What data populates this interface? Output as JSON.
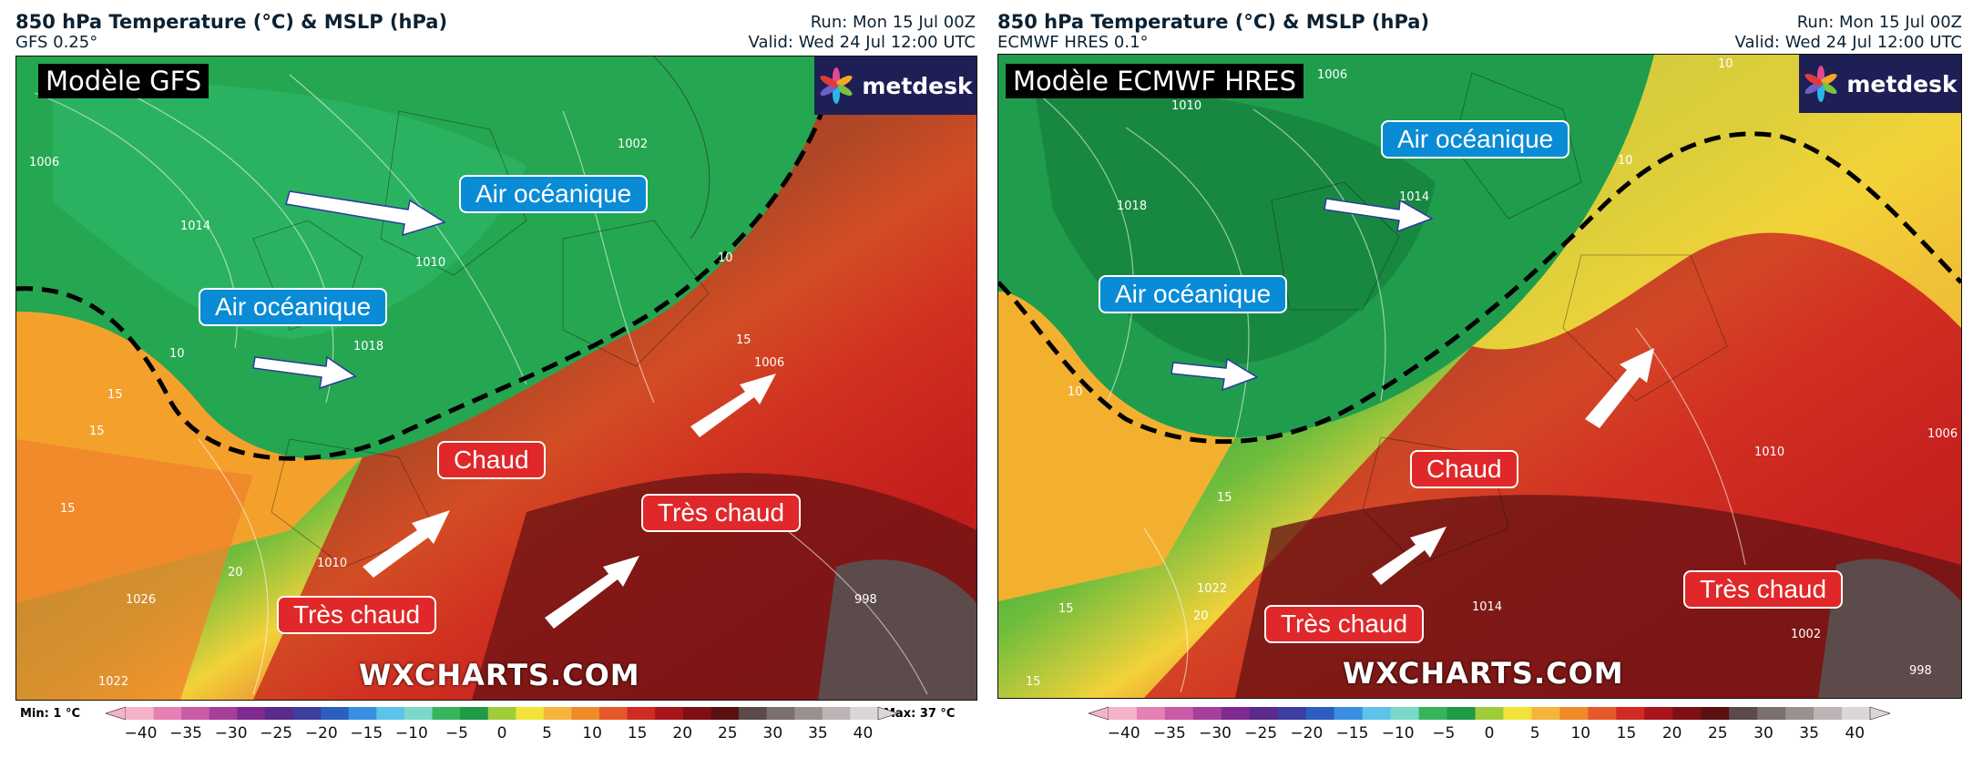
{
  "colors": {
    "ocean_air_label": "#0a8bd6",
    "warm_label": "#e0282a",
    "logo_bg": "#1d1f55",
    "cold_green": "#1fa24a",
    "hot_red": "#c01818"
  },
  "left": {
    "title": "850 hPa Temperature (°C) & MSLP (hPa)",
    "subtitle": "GFS 0.25°",
    "run": "Run: Mon 15 Jul 00Z",
    "valid": "Valid: Wed 24 Jul 12:00 UTC",
    "model_label": "Modèle GFS",
    "logo_text": "metdesk",
    "labels": {
      "air1": "Air océanique",
      "air2": "Air océanique",
      "chaud": "Chaud",
      "tres1": "Très chaud",
      "tres2": "Très chaud"
    },
    "watermark": "WXCHARTS.COM",
    "min_label": "Min: 1 °C",
    "max_label": "Max: 37 °C",
    "isobars": [
      "1006",
      "1014",
      "1010",
      "1018",
      "1002",
      "998",
      "1026",
      "1022",
      "1010",
      "1006"
    ],
    "temps": [
      "10",
      "15",
      "15",
      "15",
      "20",
      "10",
      "15"
    ]
  },
  "right": {
    "title": "850 hPa Temperature (°C) & MSLP (hPa)",
    "subtitle": "ECMWF HRES 0.1°",
    "run": "Run: Mon 15 Jul 00Z",
    "valid": "Valid: Wed 24 Jul 12:00 UTC",
    "model_label": "Modèle ECMWF HRES",
    "logo_text": "metdesk",
    "labels": {
      "air1": "Air océanique",
      "air2": "Air océanique",
      "chaud": "Chaud",
      "tres1": "Très chaud",
      "tres2": "Très chaud"
    },
    "watermark": "WXCHARTS.COM",
    "isobars": [
      "1006",
      "1010",
      "1014",
      "1018",
      "1010",
      "1022",
      "1014",
      "1002",
      "998",
      "1006"
    ],
    "temps": [
      "10",
      "10",
      "10",
      "15",
      "20",
      "15",
      "15"
    ]
  },
  "colorbar": {
    "ticks": [
      "−40",
      "−35",
      "−30",
      "−25",
      "−20",
      "−15",
      "−10",
      "−5",
      "0",
      "5",
      "10",
      "15",
      "20",
      "25",
      "30",
      "35",
      "40"
    ],
    "colors": [
      "#f4b3c9",
      "#e57fb4",
      "#c95aa6",
      "#a53f9a",
      "#7e2a8e",
      "#5b2a8a",
      "#3c3ea0",
      "#2c5ec0",
      "#3a8fe0",
      "#5cc4e8",
      "#7ad9c9",
      "#37b45b",
      "#1f9a45",
      "#9fcc3a",
      "#f2e23a",
      "#f6b43a",
      "#f08a2a",
      "#e6572a",
      "#d02a22",
      "#a8161c",
      "#7e1014",
      "#5a1010",
      "#5a4a4a",
      "#7a7070",
      "#9a9090",
      "#bcb4b4",
      "#dcd6d6"
    ]
  }
}
